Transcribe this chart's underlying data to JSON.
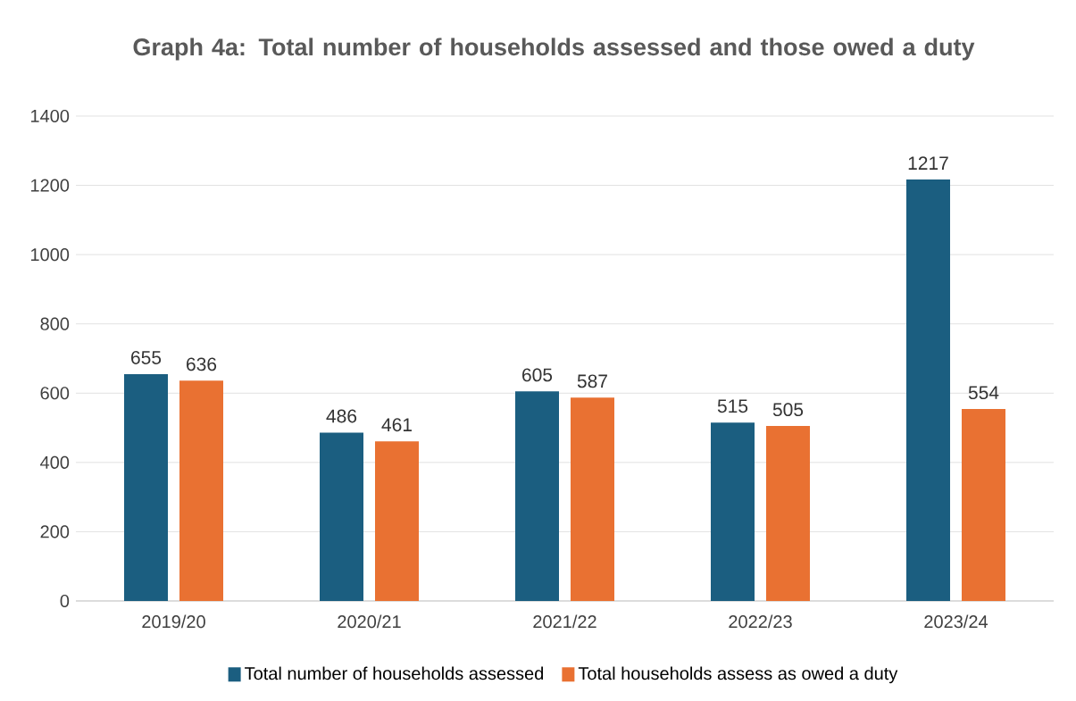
{
  "chart_data": {
    "type": "bar",
    "title": "Graph 4a: Total number of households assessed and those owed a duty",
    "categories": [
      "2019/20",
      "2020/21",
      "2021/22",
      "2022/23",
      "2023/24"
    ],
    "series": [
      {
        "name": "Total number of households assessed",
        "color": "#1b5e80",
        "values": [
          655,
          486,
          605,
          515,
          1217
        ]
      },
      {
        "name": "Total households assess as owed a duty",
        "color": "#e97132",
        "values": [
          636,
          461,
          587,
          505,
          554
        ]
      }
    ],
    "ylim": [
      0,
      1400
    ],
    "yticks": [
      0,
      200,
      400,
      600,
      800,
      1000,
      1200,
      1400
    ],
    "grid": "y",
    "legend": "bottom",
    "data_labels": true
  }
}
